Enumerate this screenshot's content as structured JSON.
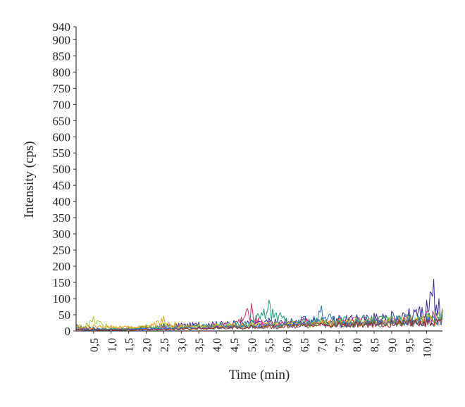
{
  "chart_data": {
    "type": "line",
    "title": "",
    "xlabel": "Time (min)",
    "ylabel": "Intensity (cps)",
    "xlim": [
      0,
      10.45
    ],
    "ylim": [
      0,
      940
    ],
    "x_ticks": [
      0.5,
      1.0,
      1.5,
      2.0,
      2.5,
      3.0,
      3.5,
      4.0,
      4.5,
      5.0,
      5.5,
      6.0,
      6.5,
      7.0,
      7.5,
      8.0,
      8.5,
      9.0,
      9.5,
      10.0
    ],
    "x_tick_labels": [
      "0,5",
      "1,0",
      "1,5",
      "2,0",
      "2,5",
      "3,0",
      "3,5",
      "4,0",
      "4,5",
      "5,0",
      "5,5",
      "6,0",
      "6,5",
      "7,0",
      "7,5",
      "8,0",
      "8,5",
      "9,0",
      "9,5",
      "10,0"
    ],
    "y_ticks": [
      0,
      50,
      100,
      150,
      200,
      250,
      300,
      350,
      400,
      450,
      500,
      550,
      600,
      650,
      700,
      750,
      800,
      850,
      900,
      940
    ],
    "y_tick_labels": [
      "0",
      "50",
      "100",
      "150",
      "200",
      "250",
      "300",
      "350",
      "400",
      "450",
      "500",
      "550",
      "600",
      "650",
      "700",
      "750",
      "800",
      "850",
      "900",
      "940"
    ],
    "legend": "none",
    "grid": false,
    "series": [
      {
        "color": "#3a2a9a",
        "x": [
          0,
          0.5,
          1,
          1.5,
          2,
          2.5,
          3,
          3.5,
          4,
          4.5,
          5,
          5.2,
          5.5,
          6,
          6.5,
          7,
          7.5,
          8,
          8.5,
          9,
          9.5,
          9.8,
          10,
          10.2,
          10.35,
          10.45
        ],
        "values": [
          20,
          12,
          8,
          10,
          15,
          22,
          25,
          28,
          30,
          32,
          35,
          30,
          40,
          38,
          45,
          42,
          48,
          50,
          55,
          60,
          70,
          75,
          95,
          160,
          100,
          70
        ]
      },
      {
        "color": "#d42a6a",
        "x": [
          0,
          0.5,
          1,
          1.5,
          2,
          2.5,
          3,
          3.5,
          4,
          4.5,
          5,
          5.2,
          5.5,
          6,
          6.5,
          7,
          7.5,
          8,
          8.5,
          9,
          9.5,
          10,
          10.45
        ],
        "values": [
          10,
          8,
          6,
          8,
          12,
          15,
          20,
          22,
          24,
          26,
          85,
          40,
          30,
          35,
          40,
          38,
          42,
          45,
          48,
          50,
          55,
          60,
          65
        ]
      },
      {
        "color": "#1a9a7a",
        "x": [
          0,
          0.5,
          1,
          1.5,
          2,
          2.5,
          3,
          3.5,
          4,
          4.5,
          5,
          5.5,
          6,
          6.5,
          7,
          7.5,
          8,
          8.5,
          9,
          9.5,
          10,
          10.45
        ],
        "values": [
          12,
          10,
          8,
          10,
          14,
          18,
          20,
          22,
          25,
          28,
          35,
          95,
          40,
          38,
          42,
          44,
          46,
          48,
          50,
          52,
          55,
          60
        ]
      },
      {
        "color": "#9acd32",
        "x": [
          0,
          0.3,
          0.5,
          1,
          1.5,
          2,
          2.5,
          3,
          3.5,
          4,
          4.5,
          5,
          5.5,
          6,
          6.5,
          7,
          7.5,
          8,
          8.5,
          9,
          9.5,
          10,
          10.45
        ],
        "values": [
          18,
          25,
          45,
          15,
          12,
          20,
          25,
          18,
          20,
          22,
          24,
          26,
          28,
          30,
          32,
          34,
          36,
          38,
          40,
          42,
          45,
          50,
          70
        ]
      },
      {
        "color": "#e8a020",
        "x": [
          0,
          0.5,
          1,
          1.5,
          2,
          2.3,
          2.5,
          3,
          3.5,
          4,
          4.5,
          5,
          5.5,
          6,
          6.5,
          7,
          7.5,
          8,
          8.5,
          9,
          9.5,
          10,
          10.45
        ],
        "values": [
          15,
          20,
          18,
          15,
          18,
          30,
          45,
          20,
          18,
          20,
          22,
          24,
          26,
          28,
          30,
          32,
          34,
          36,
          38,
          40,
          42,
          44,
          48
        ]
      },
      {
        "color": "#2a6ad4",
        "x": [
          0,
          0.5,
          1,
          1.5,
          2,
          2.5,
          3,
          3.5,
          4,
          4.5,
          5,
          5.5,
          6,
          6.5,
          7,
          7.5,
          8,
          8.5,
          9,
          9.5,
          10,
          10.45
        ],
        "values": [
          8,
          6,
          5,
          6,
          8,
          10,
          12,
          14,
          16,
          18,
          20,
          25,
          28,
          30,
          78,
          32,
          35,
          38,
          40,
          42,
          45,
          50
        ]
      },
      {
        "color": "#6a6a6a",
        "x": [
          0,
          0.5,
          1,
          1.5,
          2,
          2.5,
          3,
          3.5,
          4,
          4.5,
          5,
          5.5,
          6,
          6.5,
          7,
          7.5,
          8,
          8.5,
          9,
          9.5,
          10,
          10.45
        ],
        "values": [
          6,
          5,
          5,
          5,
          6,
          8,
          10,
          12,
          14,
          16,
          18,
          20,
          22,
          24,
          26,
          28,
          30,
          32,
          34,
          36,
          38,
          40
        ]
      },
      {
        "color": "#8a2a2a",
        "x": [
          0,
          0.5,
          1,
          1.5,
          2,
          2.5,
          3,
          3.5,
          4,
          4.5,
          5,
          5.5,
          6,
          6.5,
          7,
          7.5,
          8,
          8.5,
          9,
          9.5,
          10,
          10.45
        ],
        "values": [
          5,
          4,
          4,
          4,
          5,
          6,
          8,
          10,
          12,
          14,
          16,
          18,
          20,
          22,
          24,
          26,
          28,
          30,
          32,
          34,
          36,
          38
        ]
      }
    ]
  }
}
